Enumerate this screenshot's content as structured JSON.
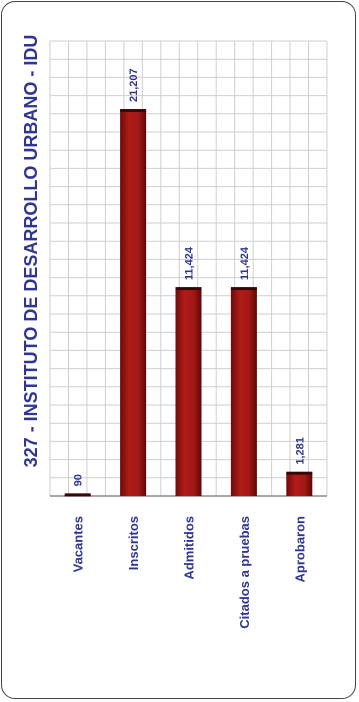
{
  "chart_data": {
    "type": "bar",
    "title": "327 - INSTITUTO DE DESARROLLO URBANO - IDU",
    "categories": [
      "Vacantes",
      "Inscritos",
      "Admitidos",
      "Citados a pruebas",
      "Aprobaron"
    ],
    "values": [
      90,
      21207,
      11424,
      11424,
      1281
    ],
    "value_labels": [
      "90",
      "21,207",
      "11,424",
      "11,424",
      "1,281"
    ],
    "ylim": [
      0,
      25000
    ],
    "grid": true,
    "orientation": "vertical bars, figure rotated 90° counter-clockwise",
    "bar_color": "#a31815",
    "text_color": "#2f3591",
    "grid_color": "#cfcfcf"
  }
}
